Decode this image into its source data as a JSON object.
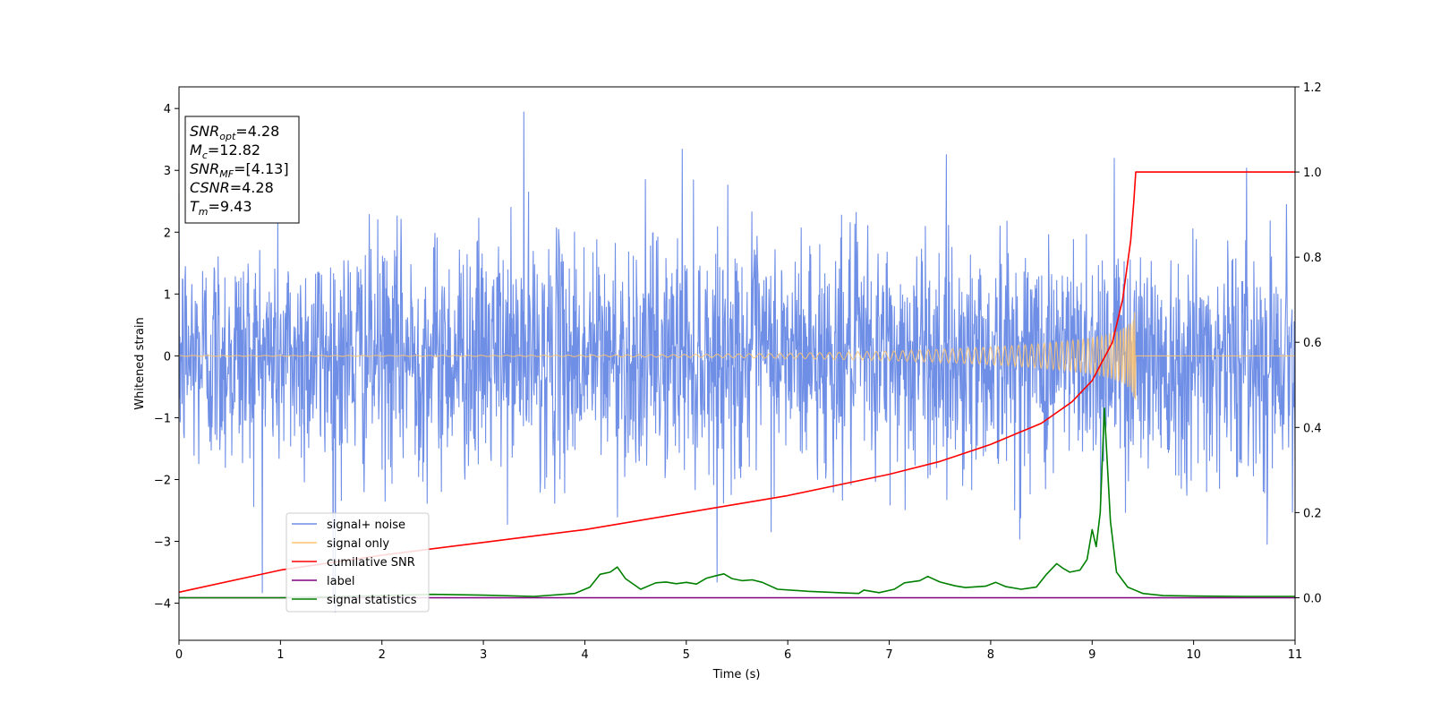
{
  "chart_data": {
    "type": "line",
    "title": "",
    "xlabel": "Time (s)",
    "ylabel": "Whitened strain",
    "xlim": [
      0,
      11
    ],
    "ylim": [
      -4.6,
      4.35
    ],
    "ylim_right": [
      -0.1,
      1.2
    ],
    "xticks": [
      "0",
      "1",
      "2",
      "3",
      "4",
      "5",
      "6",
      "7",
      "8",
      "9",
      "10",
      "11"
    ],
    "yticks": [
      "4",
      "3",
      "2",
      "1",
      "0",
      "−1",
      "−2",
      "−3",
      "−4"
    ],
    "yticks_right": [
      "1.2",
      "1.0",
      "0.8",
      "0.6",
      "0.4",
      "0.2",
      "0.0"
    ],
    "grid": false,
    "legend_placement": "lower-left",
    "info_box": {
      "lines": [
        {
          "main": "SNR",
          "sub": "opt",
          "value": "=4.28"
        },
        {
          "main": "M",
          "sub": "c",
          "value": "=12.82"
        },
        {
          "main": "SNR",
          "sub": "MF",
          "value": "=[4.13]"
        },
        {
          "main": "CSNR",
          "sub": "",
          "value": "=4.28"
        },
        {
          "main": "T",
          "sub": "m",
          "value": "=9.43"
        }
      ]
    },
    "series": [
      {
        "name": "signal+ noise",
        "color": "#6f8ee6",
        "axis": "left",
        "kind": "noise",
        "std": 0.95,
        "range": [
          -4.15,
          3.95
        ],
        "notable_peaks": [
          [
            3.4,
            3.95
          ],
          [
            1.54,
            -4.15
          ],
          [
            4.96,
            3.35
          ],
          [
            9.22,
            3.2
          ]
        ]
      },
      {
        "name": "signal only",
        "color": "#ffc56e",
        "axis": "left",
        "kind": "chirp",
        "t_merge": 9.43,
        "peak_amplitude": 0.8
      },
      {
        "name": "cumilative SNR",
        "color": "#ff0000",
        "axis": "right",
        "x": [
          0,
          1,
          2,
          3,
          4,
          5,
          6,
          7,
          7.5,
          8,
          8.5,
          8.8,
          9,
          9.2,
          9.3,
          9.38,
          9.41,
          9.43,
          11
        ],
        "y": [
          0.013,
          0.065,
          0.1,
          0.13,
          0.16,
          0.2,
          0.24,
          0.29,
          0.32,
          0.36,
          0.41,
          0.46,
          0.51,
          0.6,
          0.7,
          0.84,
          0.93,
          1.0,
          1.0
        ]
      },
      {
        "name": "label",
        "color": "#800080",
        "axis": "right",
        "x": [
          0,
          11
        ],
        "y": [
          0,
          0
        ]
      },
      {
        "name": "signal statistics",
        "color": "#008000",
        "axis": "right",
        "x": [
          0,
          0.5,
          1,
          1.5,
          2,
          2.5,
          3,
          3.5,
          3.9,
          4.05,
          4.15,
          4.25,
          4.32,
          4.4,
          4.55,
          4.7,
          4.8,
          4.9,
          5.0,
          5.1,
          5.2,
          5.3,
          5.37,
          5.45,
          5.55,
          5.65,
          5.75,
          5.9,
          6.2,
          6.5,
          6.7,
          6.75,
          6.9,
          7.05,
          7.15,
          7.3,
          7.38,
          7.5,
          7.65,
          7.75,
          7.95,
          8.05,
          8.15,
          8.3,
          8.45,
          8.55,
          8.65,
          8.72,
          8.78,
          8.88,
          8.95,
          9.0,
          9.04,
          9.08,
          9.12,
          9.18,
          9.24,
          9.35,
          9.5,
          9.7,
          10,
          10.5,
          11
        ],
        "y": [
          0,
          0.0,
          0.0,
          0.002,
          0.005,
          0.008,
          0.006,
          0.003,
          0.01,
          0.025,
          0.055,
          0.06,
          0.072,
          0.045,
          0.02,
          0.035,
          0.037,
          0.033,
          0.036,
          0.032,
          0.046,
          0.052,
          0.056,
          0.045,
          0.04,
          0.042,
          0.036,
          0.02,
          0.015,
          0.012,
          0.01,
          0.018,
          0.012,
          0.02,
          0.035,
          0.04,
          0.05,
          0.037,
          0.028,
          0.024,
          0.027,
          0.036,
          0.026,
          0.02,
          0.025,
          0.055,
          0.08,
          0.068,
          0.06,
          0.065,
          0.09,
          0.16,
          0.12,
          0.2,
          0.445,
          0.18,
          0.06,
          0.025,
          0.01,
          0.005,
          0.004,
          0.003,
          0.003
        ]
      }
    ]
  }
}
